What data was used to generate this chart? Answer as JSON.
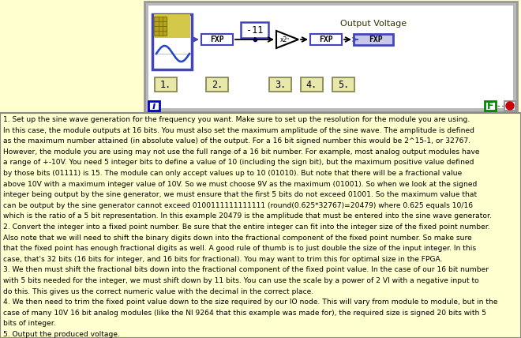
{
  "bg_color": "#ffffd0",
  "diagram_border_color": "#aaaaaa",
  "diagram_inner_color": "#ffffff",
  "text_lines": [
    {
      "num": "1.",
      "indent": false,
      "text": " Set up the sine wave generation for the frequency you want. Make sure to set up the resolution for the module you are using."
    },
    {
      "num": "",
      "indent": true,
      "text": "In this case, the module outputs at 16 bits. You must also set the maximum amplitude of the sine wave. The amplitude is defined"
    },
    {
      "num": "",
      "indent": true,
      "text": "as the maximum number attained (in absolute value) of the output. For a 16 bit signed number this would be 2^15-1, or 32767."
    },
    {
      "num": "",
      "indent": true,
      "text": "However, the module you are using may not use the full range of a 16 bit number. For example, most analog output modules have"
    },
    {
      "num": "",
      "indent": true,
      "text": "a range of +-10V. You need 5 integer bits to define a value of 10 (including the sign bit), but the maximum positive value defined"
    },
    {
      "num": "",
      "indent": true,
      "text": "by those bits (01111) is 15. The module can only accept values up to 10 (01010). But note that there will be a fractional value"
    },
    {
      "num": "",
      "indent": true,
      "text": "above 10V with a maximum integer value of 10V. So we must choose 9V as the maximum (01001). So when we look at the signed"
    },
    {
      "num": "",
      "indent": true,
      "text": "integer being output by the sine generator, we must ensure that the first 5 bits do not exceed 01001. So the maximum value that"
    },
    {
      "num": "",
      "indent": true,
      "text": "can be output by the sine generator cannot exceed 0100111111111111 (round(0.625*32767)=20479) where 0.625 equals 10/16"
    },
    {
      "num": "",
      "indent": true,
      "text": "which is the ratio of a 5 bit representation. In this example 20479 is the amplitude that must be entered into the sine wave generator."
    },
    {
      "num": "2.",
      "indent": false,
      "text": " Convert the integer into a fixed point number. Be sure that the entire integer can fit into the integer size of the fixed point number."
    },
    {
      "num": "",
      "indent": true,
      "text": "Also note that we will need to shift the binary digits down into the fractional component of the fixed point number. So make sure"
    },
    {
      "num": "",
      "indent": true,
      "text": "that the fixed point has enough fractional digits as well. A good rule of thumb is to just double the size of the input integer. In this"
    },
    {
      "num": "",
      "indent": true,
      "text": "case, that's 32 bits (16 bits for integer, and 16 bits for fractional). You may want to trim this for optimal size in the FPGA."
    },
    {
      "num": "3.",
      "indent": false,
      "text": " We then must shift the fractional bits down into the fractional component of the fixed point value. In the case of our 16 bit number"
    },
    {
      "num": "",
      "indent": true,
      "text": "with 5 bits needed for the integer, we must shift down by 11 bits. You can use the scale by a power of 2 VI with a negative input to"
    },
    {
      "num": "",
      "indent": true,
      "text": "do this. This gives us the correct numeric value with the decimal in the correct place."
    },
    {
      "num": "4.",
      "indent": false,
      "text": " We then need to trim the fixed point value down to the size required by our IO node. This will vary from module to module, but in the"
    },
    {
      "num": "",
      "indent": true,
      "text": "case of many 10V 16 bit analog modules (like the NI 9264 that this example was made for), the required size is signed 20 bits with 5"
    },
    {
      "num": "",
      "indent": true,
      "text": "bits of integer."
    },
    {
      "num": "5.",
      "indent": false,
      "text": " Output the produced voltage."
    }
  ],
  "output_voltage_label": "Output Voltage",
  "num_labels": [
    "1.",
    "2.",
    "3.",
    "4.",
    "5."
  ],
  "fxp_blue": "#4444bb",
  "info_blue": "#0000cc",
  "f_green": "#008800",
  "stop_red": "#cc0000",
  "num_box_color": "#cccc88",
  "arrow_blue": "#4444bb"
}
